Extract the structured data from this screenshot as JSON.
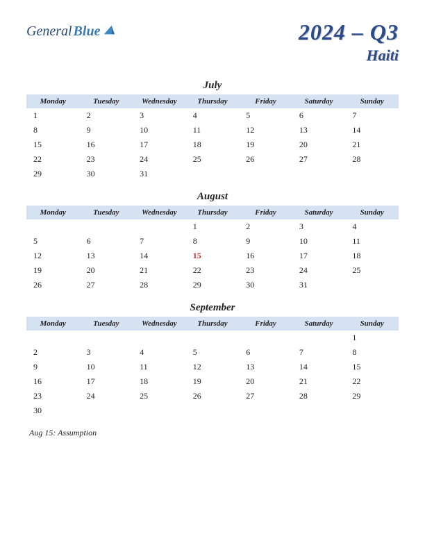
{
  "logo": {
    "general": "General",
    "blue": "Blue"
  },
  "header": {
    "quarter": "2024 – Q3",
    "country": "Haiti"
  },
  "styling": {
    "page_bg": "#ffffff",
    "header_row_bg": "#d6e2f2",
    "title_color": "#2a4a8a",
    "title_shadow": "#c0c0c0",
    "day_color": "#222222",
    "holiday_color": "#c03030",
    "day_headers": [
      "Monday",
      "Tuesday",
      "Wednesday",
      "Thursday",
      "Friday",
      "Saturday",
      "Sunday"
    ],
    "header_fontsize": 11,
    "day_fontsize": 12,
    "month_fontsize": 15,
    "title_fontsize": 32,
    "country_fontsize": 22
  },
  "months": [
    {
      "name": "July",
      "weeks": [
        [
          "1",
          "2",
          "3",
          "4",
          "5",
          "6",
          "7"
        ],
        [
          "8",
          "9",
          "10",
          "11",
          "12",
          "13",
          "14"
        ],
        [
          "15",
          "16",
          "17",
          "18",
          "19",
          "20",
          "21"
        ],
        [
          "22",
          "23",
          "24",
          "25",
          "26",
          "27",
          "28"
        ],
        [
          "29",
          "30",
          "31",
          "",
          "",
          "",
          ""
        ]
      ],
      "holidays": []
    },
    {
      "name": "August",
      "weeks": [
        [
          "",
          "",
          "",
          "1",
          "2",
          "3",
          "4"
        ],
        [
          "5",
          "6",
          "7",
          "8",
          "9",
          "10",
          "11"
        ],
        [
          "12",
          "13",
          "14",
          "15",
          "16",
          "17",
          "18"
        ],
        [
          "19",
          "20",
          "21",
          "22",
          "23",
          "24",
          "25"
        ],
        [
          "26",
          "27",
          "28",
          "29",
          "30",
          "31",
          ""
        ]
      ],
      "holidays": [
        "15"
      ]
    },
    {
      "name": "September",
      "weeks": [
        [
          "",
          "",
          "",
          "",
          "",
          "",
          "1"
        ],
        [
          "2",
          "3",
          "4",
          "5",
          "6",
          "7",
          "8"
        ],
        [
          "9",
          "10",
          "11",
          "12",
          "13",
          "14",
          "15"
        ],
        [
          "16",
          "17",
          "18",
          "19",
          "20",
          "21",
          "22"
        ],
        [
          "23",
          "24",
          "25",
          "26",
          "27",
          "28",
          "29"
        ],
        [
          "30",
          "",
          "",
          "",
          "",
          "",
          ""
        ]
      ],
      "holidays": []
    }
  ],
  "holiday_note": "Aug 15: Assumption"
}
